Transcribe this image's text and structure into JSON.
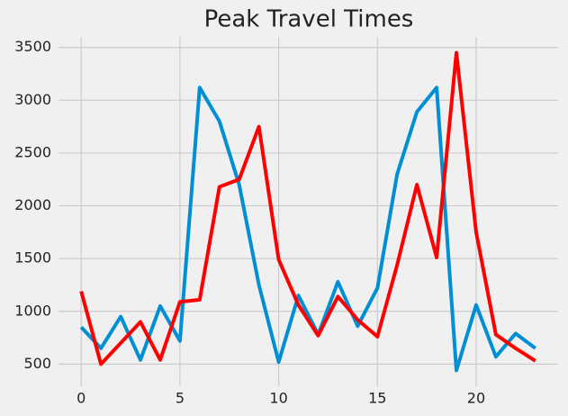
{
  "chart_data": {
    "type": "line",
    "title": "Peak Travel Times",
    "x": [
      0,
      1,
      2,
      3,
      4,
      5,
      6,
      7,
      8,
      9,
      10,
      11,
      12,
      13,
      14,
      15,
      16,
      17,
      18,
      19,
      20,
      21,
      22,
      23
    ],
    "series": [
      {
        "color": "#008fd5",
        "values": [
          850,
          650,
          950,
          540,
          1050,
          720,
          3120,
          2800,
          2200,
          1250,
          520,
          1150,
          780,
          1280,
          860,
          1220,
          2300,
          2890,
          3120,
          440,
          1060,
          570,
          790,
          650
        ]
      },
      {
        "color": "#ff0000",
        "values": [
          1190,
          500,
          700,
          900,
          540,
          1090,
          1110,
          2180,
          2250,
          2750,
          1490,
          1060,
          770,
          1140,
          920,
          760,
          1440,
          2200,
          1510,
          3450,
          1750,
          780,
          650,
          530
        ]
      }
    ],
    "xlim": [
      -1.15,
      24.15
    ],
    "ylim": [
      290,
      3600
    ],
    "xticks": [
      0,
      5,
      10,
      15,
      20
    ],
    "yticks": [
      500,
      1000,
      1500,
      2000,
      2500,
      3000,
      3500
    ],
    "grid": true
  }
}
